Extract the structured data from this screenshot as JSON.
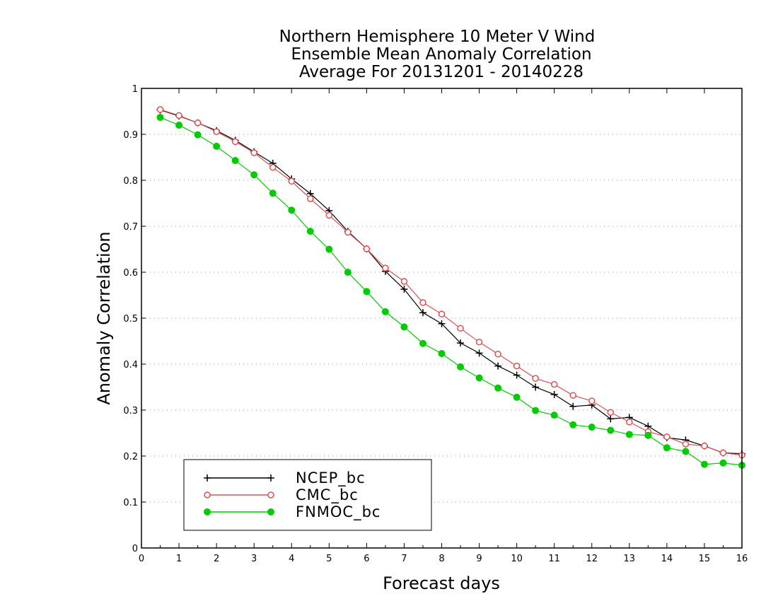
{
  "chart_data": {
    "type": "line",
    "title": [
      "Northern Hemisphere 10 Meter V Wind",
      "Ensemble Mean Anomaly Correlation",
      "Average For 20131201 - 20140228"
    ],
    "xlabel": "Forecast days",
    "ylabel": "Anomaly Correlation",
    "xlim": [
      0,
      16
    ],
    "ylim": [
      0,
      1
    ],
    "xticks": [
      0,
      1,
      2,
      3,
      4,
      5,
      6,
      7,
      8,
      9,
      10,
      11,
      12,
      13,
      14,
      15,
      16
    ],
    "yticks": [
      0,
      0.1,
      0.2,
      0.3,
      0.4,
      0.5,
      0.6,
      0.7,
      0.8,
      0.9,
      1
    ],
    "ytick_labels": [
      "0",
      "0.1",
      "0.2",
      "0.3",
      "0.4",
      "0.5",
      "0.6",
      "0.7",
      "0.8",
      "0.9",
      "1"
    ],
    "grid": "horizontal dotted",
    "legend_position": "bottom-left",
    "x": [
      0.5,
      1,
      1.5,
      2,
      2.5,
      3,
      3.5,
      4,
      4.5,
      5,
      5.5,
      6,
      6.5,
      7,
      7.5,
      8,
      8.5,
      9,
      9.5,
      10,
      10.5,
      11,
      11.5,
      12,
      12.5,
      13,
      13.5,
      14,
      14.5,
      15,
      15.5,
      16
    ],
    "series": [
      {
        "name": "NCEP_bc",
        "color": "#000000",
        "marker": "plus",
        "values": [
          0.953,
          0.94,
          0.925,
          0.908,
          0.887,
          0.862,
          0.837,
          0.803,
          0.771,
          0.734,
          0.689,
          0.651,
          0.602,
          0.563,
          0.512,
          0.488,
          0.446,
          0.424,
          0.396,
          0.376,
          0.35,
          0.334,
          0.308,
          0.311,
          0.281,
          0.284,
          0.265,
          0.24,
          0.235,
          0.222,
          0.207,
          0.205
        ]
      },
      {
        "name": "CMC_bc",
        "color": "#e05050",
        "marker": "open-circle",
        "values": [
          0.954,
          0.941,
          0.925,
          0.906,
          0.884,
          0.86,
          0.828,
          0.798,
          0.76,
          0.724,
          0.687,
          0.651,
          0.609,
          0.58,
          0.534,
          0.509,
          0.478,
          0.448,
          0.422,
          0.396,
          0.369,
          0.356,
          0.332,
          0.32,
          0.295,
          0.274,
          0.253,
          0.242,
          0.226,
          0.222,
          0.207,
          0.202
        ]
      },
      {
        "name": "FNMOC_bc",
        "color": "#00cc00",
        "marker": "filled-circle",
        "values": [
          0.937,
          0.92,
          0.899,
          0.874,
          0.843,
          0.812,
          0.772,
          0.735,
          0.689,
          0.65,
          0.6,
          0.558,
          0.514,
          0.481,
          0.445,
          0.423,
          0.394,
          0.37,
          0.348,
          0.328,
          0.299,
          0.289,
          0.268,
          0.263,
          0.256,
          0.247,
          0.245,
          0.218,
          0.21,
          0.182,
          0.185,
          0.18
        ]
      }
    ]
  }
}
